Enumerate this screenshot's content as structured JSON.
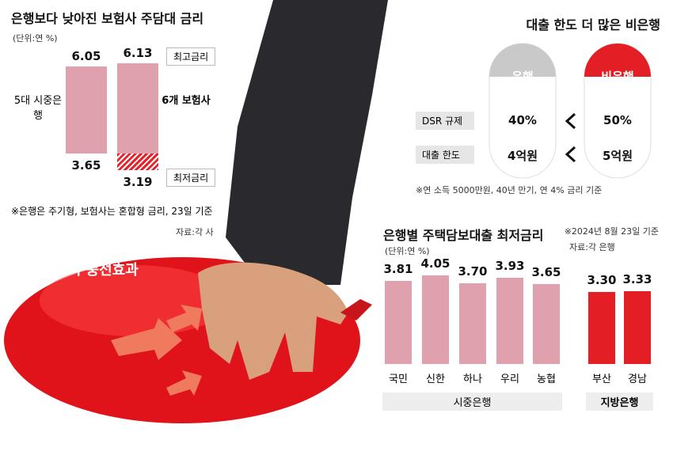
{
  "chart_data": [
    {
      "type": "range",
      "title": "은행보다 낮아진 보험사 주담대 금리",
      "unit": "(단위:연 %)",
      "categories": [
        "5대 시중은행",
        "6개 보험사"
      ],
      "series": [
        {
          "name": "최고금리",
          "values": [
            6.05,
            6.13
          ]
        },
        {
          "name": "최저금리",
          "values": [
            3.65,
            3.19
          ]
        }
      ],
      "color": "#dfa1ae",
      "highlight_color": "#e8242b",
      "note": "※은행은 주기형, 보험사는 혼합형 금리, 23일 기준",
      "source": "자료:각 사"
    },
    {
      "type": "bar",
      "title": "은행별 주택담보대출 최저금리",
      "unit": "(단위:연 %)",
      "date_note": "※2024년 8월 23일 기준",
      "source": "자료:각 은행",
      "categories": [
        "국민",
        "신한",
        "하나",
        "우리",
        "농협",
        "부산",
        "경남"
      ],
      "series": [
        {
          "name": "시중은행",
          "color": "#dfa1ae",
          "values": [
            3.81,
            4.05,
            3.7,
            3.93,
            3.65,
            null,
            null
          ],
          "value_labels": [
            "3.81",
            "4.05",
            "3.70",
            "3.93",
            "3.65",
            null,
            null
          ]
        },
        {
          "name": "지방은행",
          "color": "#e31e24",
          "values": [
            null,
            null,
            null,
            null,
            null,
            3.3,
            3.33
          ],
          "value_labels": [
            null,
            null,
            null,
            null,
            null,
            "3.30",
            "3.33"
          ]
        }
      ]
    }
  ],
  "comparison": {
    "title": "대출 한도 더 많은 비은행",
    "columns": [
      "은행",
      "비은행"
    ],
    "rows": [
      {
        "label": "DSR 규제",
        "values": [
          "40%",
          "50%"
        ]
      },
      {
        "label": "대출 한도",
        "values": [
          "4억원",
          "5억원"
        ]
      }
    ],
    "note": "※연 소득 5000만원, 40년 만기, 연 4% 금리 기준"
  },
  "illustration": {
    "label": "금리 풍선효과"
  }
}
